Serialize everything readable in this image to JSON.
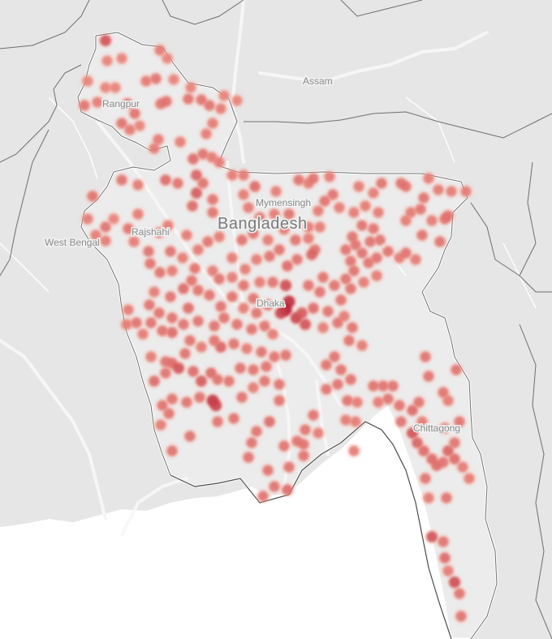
{
  "map": {
    "labels": {
      "assam": "Assam",
      "rangpur": "Rangpur",
      "mymensingh": "Mymensingh",
      "bangladesh": "Bangladesh",
      "rajshahi": "Rajshahi",
      "west_bengal": "West Bengal",
      "dhaka": "Dhaka",
      "chittagong": "Chittagong"
    },
    "colors": {
      "land": "#e8e8e8",
      "country": "#ededed",
      "sea": "#ffffff",
      "border": "#6e6e6e",
      "river": "#f6f6f6",
      "hotspot_low": "#f7a08e",
      "hotspot_high": "#a8001f"
    },
    "points": [
      [
        130,
        50,
        0.5
      ],
      [
        197,
        62,
        0.25
      ],
      [
        206,
        72,
        0.2
      ],
      [
        132,
        75,
        0.2
      ],
      [
        150,
        72,
        0.2
      ],
      [
        192,
        97,
        0.3
      ],
      [
        180,
        100,
        0.25
      ],
      [
        214,
        98,
        0.2
      ],
      [
        108,
        100,
        0.2
      ],
      [
        130,
        108,
        0.2
      ],
      [
        142,
        108,
        0.2
      ],
      [
        104,
        130,
        0.3
      ],
      [
        120,
        126,
        0.25
      ],
      [
        157,
        128,
        0.35
      ],
      [
        166,
        140,
        0.3
      ],
      [
        150,
        152,
        0.3
      ],
      [
        160,
        160,
        0.25
      ],
      [
        198,
        128,
        0.3
      ],
      [
        205,
        125,
        0.3
      ],
      [
        235,
        108,
        0.2
      ],
      [
        232,
        122,
        0.3
      ],
      [
        248,
        123,
        0.3
      ],
      [
        258,
        130,
        0.3
      ],
      [
        272,
        134,
        0.25
      ],
      [
        276,
        118,
        0.2
      ],
      [
        292,
        124,
        0.2
      ],
      [
        262,
        152,
        0.25
      ],
      [
        254,
        165,
        0.25
      ],
      [
        195,
        172,
        0.25
      ],
      [
        190,
        183,
        0.25
      ],
      [
        222,
        175,
        0.25
      ],
      [
        172,
        155,
        0.2
      ],
      [
        250,
        190,
        0.3
      ],
      [
        238,
        196,
        0.35
      ],
      [
        261,
        194,
        0.25
      ],
      [
        270,
        200,
        0.25
      ],
      [
        242,
        216,
        0.4
      ],
      [
        250,
        226,
        0.3
      ],
      [
        242,
        238,
        0.45
      ],
      [
        262,
        246,
        0.3
      ],
      [
        237,
        254,
        0.35
      ],
      [
        262,
        262,
        0.3
      ],
      [
        150,
        222,
        0.3
      ],
      [
        170,
        228,
        0.25
      ],
      [
        204,
        222,
        0.35
      ],
      [
        219,
        226,
        0.3
      ],
      [
        114,
        242,
        0.3
      ],
      [
        108,
        270,
        0.25
      ],
      [
        130,
        280,
        0.3
      ],
      [
        118,
        290,
        0.25
      ],
      [
        140,
        270,
        0.2
      ],
      [
        130,
        297,
        0.25
      ],
      [
        158,
        282,
        0.3
      ],
      [
        165,
        298,
        0.25
      ],
      [
        170,
        264,
        0.25
      ],
      [
        196,
        287,
        0.25
      ],
      [
        207,
        278,
        0.25
      ],
      [
        210,
        310,
        0.3
      ],
      [
        183,
        310,
        0.3
      ],
      [
        185,
        325,
        0.3
      ],
      [
        197,
        336,
        0.3
      ],
      [
        212,
        334,
        0.25
      ],
      [
        225,
        318,
        0.25
      ],
      [
        230,
        290,
        0.25
      ],
      [
        244,
        308,
        0.25
      ],
      [
        256,
        298,
        0.3
      ],
      [
        270,
        292,
        0.25
      ],
      [
        240,
        331,
        0.3
      ],
      [
        236,
        346,
        0.3
      ],
      [
        262,
        334,
        0.25
      ],
      [
        270,
        344,
        0.3
      ],
      [
        286,
        318,
        0.25
      ],
      [
        298,
        296,
        0.3
      ],
      [
        312,
        288,
        0.3
      ],
      [
        330,
        296,
        0.25
      ],
      [
        350,
        283,
        0.25
      ],
      [
        344,
        308,
        0.3
      ],
      [
        364,
        296,
        0.3
      ],
      [
        380,
        294,
        0.25
      ],
      [
        388,
        308,
        0.3
      ],
      [
        384,
        314,
        0.4
      ],
      [
        366,
        320,
        0.3
      ],
      [
        354,
        328,
        0.35
      ],
      [
        332,
        316,
        0.3
      ],
      [
        316,
        320,
        0.25
      ],
      [
        302,
        332,
        0.25
      ],
      [
        286,
        342,
        0.25
      ],
      [
        300,
        352,
        0.3
      ],
      [
        320,
        348,
        0.25
      ],
      [
        336,
        348,
        0.3
      ],
      [
        352,
        352,
        0.55
      ],
      [
        356,
        372,
        0.75
      ],
      [
        352,
        382,
        0.85
      ],
      [
        346,
        386,
        0.6
      ],
      [
        365,
        392,
        0.6
      ],
      [
        376,
        400,
        0.5
      ],
      [
        372,
        386,
        0.45
      ],
      [
        386,
        380,
        0.35
      ],
      [
        394,
        360,
        0.3
      ],
      [
        380,
        352,
        0.3
      ],
      [
        398,
        342,
        0.3
      ],
      [
        412,
        352,
        0.3
      ],
      [
        426,
        344,
        0.3
      ],
      [
        432,
        356,
        0.3
      ],
      [
        420,
        370,
        0.3
      ],
      [
        404,
        384,
        0.3
      ],
      [
        416,
        398,
        0.3
      ],
      [
        398,
        404,
        0.25
      ],
      [
        424,
        390,
        0.25
      ],
      [
        434,
        404,
        0.3
      ],
      [
        430,
        420,
        0.3
      ],
      [
        446,
        426,
        0.25
      ],
      [
        312,
        368,
        0.3
      ],
      [
        330,
        376,
        0.35
      ],
      [
        316,
        386,
        0.3
      ],
      [
        300,
        380,
        0.25
      ],
      [
        286,
        366,
        0.3
      ],
      [
        272,
        378,
        0.3
      ],
      [
        258,
        364,
        0.3
      ],
      [
        244,
        358,
        0.3
      ],
      [
        226,
        356,
        0.35
      ],
      [
        210,
        366,
        0.3
      ],
      [
        190,
        360,
        0.25
      ],
      [
        184,
        376,
        0.3
      ],
      [
        196,
        386,
        0.3
      ],
      [
        212,
        392,
        0.3
      ],
      [
        232,
        380,
        0.35
      ],
      [
        226,
        400,
        0.3
      ],
      [
        244,
        396,
        0.3
      ],
      [
        212,
        410,
        0.35
      ],
      [
        200,
        408,
        0.3
      ],
      [
        186,
        398,
        0.3
      ],
      [
        168,
        398,
        0.3
      ],
      [
        158,
        382,
        0.25
      ],
      [
        156,
        400,
        0.25
      ],
      [
        176,
        412,
        0.25
      ],
      [
        264,
        402,
        0.3
      ],
      [
        276,
        392,
        0.3
      ],
      [
        292,
        400,
        0.3
      ],
      [
        310,
        406,
        0.3
      ],
      [
        326,
        402,
        0.3
      ],
      [
        336,
        412,
        0.25
      ],
      [
        288,
        424,
        0.3
      ],
      [
        272,
        428,
        0.4
      ],
      [
        264,
        420,
        0.3
      ],
      [
        248,
        428,
        0.25
      ],
      [
        234,
        420,
        0.3
      ],
      [
        228,
        436,
        0.3
      ],
      [
        212,
        448,
        0.35
      ],
      [
        220,
        454,
        0.5
      ],
      [
        204,
        460,
        0.3
      ],
      [
        190,
        470,
        0.35
      ],
      [
        186,
        440,
        0.25
      ],
      [
        204,
        446,
        0.3
      ],
      [
        238,
        458,
        0.35
      ],
      [
        248,
        470,
        0.45
      ],
      [
        260,
        460,
        0.35
      ],
      [
        268,
        468,
        0.3
      ],
      [
        282,
        470,
        0.3
      ],
      [
        296,
        454,
        0.3
      ],
      [
        312,
        456,
        0.3
      ],
      [
        328,
        452,
        0.3
      ],
      [
        338,
        440,
        0.3
      ],
      [
        352,
        438,
        0.3
      ],
      [
        322,
        434,
        0.3
      ],
      [
        304,
        430,
        0.25
      ],
      [
        246,
        490,
        0.3
      ],
      [
        262,
        494,
        0.7
      ],
      [
        266,
        500,
        0.6
      ],
      [
        230,
        496,
        0.3
      ],
      [
        212,
        492,
        0.3
      ],
      [
        200,
        500,
        0.3
      ],
      [
        208,
        510,
        0.3
      ],
      [
        198,
        524,
        0.25
      ],
      [
        234,
        538,
        0.3
      ],
      [
        212,
        556,
        0.3
      ],
      [
        268,
        520,
        0.3
      ],
      [
        288,
        516,
        0.3
      ],
      [
        298,
        490,
        0.3
      ],
      [
        312,
        478,
        0.25
      ],
      [
        326,
        470,
        0.3
      ],
      [
        344,
        474,
        0.3
      ],
      [
        344,
        494,
        0.3
      ],
      [
        332,
        520,
        0.35
      ],
      [
        316,
        532,
        0.3
      ],
      [
        310,
        546,
        0.3
      ],
      [
        306,
        564,
        0.3
      ],
      [
        330,
        580,
        0.3
      ],
      [
        338,
        600,
        0.3
      ],
      [
        324,
        612,
        0.3
      ],
      [
        354,
        604,
        0.35
      ],
      [
        356,
        576,
        0.3
      ],
      [
        350,
        550,
        0.3
      ],
      [
        366,
        544,
        0.3
      ],
      [
        376,
        530,
        0.3
      ],
      [
        386,
        512,
        0.3
      ],
      [
        374,
        548,
        0.3
      ],
      [
        374,
        562,
        0.3
      ],
      [
        392,
        534,
        0.25
      ],
      [
        402,
        450,
        0.3
      ],
      [
        412,
        440,
        0.3
      ],
      [
        420,
        456,
        0.3
      ],
      [
        432,
        468,
        0.3
      ],
      [
        416,
        474,
        0.3
      ],
      [
        402,
        480,
        0.3
      ],
      [
        428,
        494,
        0.3
      ],
      [
        440,
        496,
        0.25
      ],
      [
        438,
        520,
        0.25
      ],
      [
        426,
        518,
        0.25
      ],
      [
        436,
        556,
        0.25
      ],
      [
        460,
        476,
        0.3
      ],
      [
        472,
        476,
        0.3
      ],
      [
        484,
        476,
        0.3
      ],
      [
        478,
        492,
        0.3
      ],
      [
        466,
        496,
        0.25
      ],
      [
        492,
        500,
        0.3
      ],
      [
        494,
        520,
        0.3
      ],
      [
        508,
        506,
        0.35
      ],
      [
        516,
        496,
        0.3
      ],
      [
        520,
        520,
        0.25
      ],
      [
        508,
        534,
        0.5
      ],
      [
        514,
        546,
        0.4
      ],
      [
        522,
        556,
        0.35
      ],
      [
        532,
        566,
        0.35
      ],
      [
        538,
        574,
        0.35
      ],
      [
        546,
        570,
        0.3
      ],
      [
        552,
        556,
        0.4
      ],
      [
        560,
        566,
        0.35
      ],
      [
        560,
        546,
        0.3
      ],
      [
        566,
        520,
        0.3
      ],
      [
        548,
        528,
        0.25
      ],
      [
        570,
        576,
        0.25
      ],
      [
        578,
        590,
        0.25
      ],
      [
        546,
        484,
        0.3
      ],
      [
        552,
        494,
        0.25
      ],
      [
        524,
        440,
        0.3
      ],
      [
        562,
        456,
        0.3
      ],
      [
        528,
        464,
        0.3
      ],
      [
        524,
        590,
        0.3
      ],
      [
        528,
        614,
        0.25
      ],
      [
        550,
        614,
        0.3
      ],
      [
        532,
        662,
        0.5
      ],
      [
        546,
        668,
        0.3
      ],
      [
        548,
        688,
        0.35
      ],
      [
        552,
        704,
        0.25
      ],
      [
        560,
        718,
        0.55
      ],
      [
        566,
        732,
        0.3
      ],
      [
        568,
        760,
        0.3
      ],
      [
        286,
        216,
        0.25
      ],
      [
        300,
        216,
        0.25
      ],
      [
        314,
        230,
        0.35
      ],
      [
        300,
        240,
        0.25
      ],
      [
        306,
        256,
        0.25
      ],
      [
        320,
        268,
        0.25
      ],
      [
        338,
        264,
        0.25
      ],
      [
        356,
        264,
        0.3
      ],
      [
        340,
        236,
        0.25
      ],
      [
        368,
        222,
        0.3
      ],
      [
        380,
        226,
        0.25
      ],
      [
        386,
        220,
        0.3
      ],
      [
        406,
        218,
        0.25
      ],
      [
        410,
        240,
        0.3
      ],
      [
        400,
        248,
        0.3
      ],
      [
        392,
        260,
        0.25
      ],
      [
        380,
        280,
        0.25
      ],
      [
        394,
        280,
        0.25
      ],
      [
        418,
        256,
        0.25
      ],
      [
        436,
        262,
        0.25
      ],
      [
        446,
        278,
        0.3
      ],
      [
        434,
        292,
        0.3
      ],
      [
        438,
        302,
        0.3
      ],
      [
        426,
        308,
        0.3
      ],
      [
        446,
        312,
        0.3
      ],
      [
        432,
        322,
        0.3
      ],
      [
        436,
        334,
        0.3
      ],
      [
        454,
        324,
        0.3
      ],
      [
        468,
        296,
        0.3
      ],
      [
        478,
        310,
        0.3
      ],
      [
        464,
        318,
        0.3
      ],
      [
        492,
        318,
        0.25
      ],
      [
        500,
        312,
        0.3
      ],
      [
        512,
        320,
        0.25
      ],
      [
        520,
        290,
        0.3
      ],
      [
        542,
        298,
        0.3
      ],
      [
        548,
        270,
        0.3
      ],
      [
        552,
        266,
        0.3
      ],
      [
        532,
        272,
        0.25
      ],
      [
        500,
        272,
        0.25
      ],
      [
        506,
        262,
        0.25
      ],
      [
        522,
        244,
        0.3
      ],
      [
        518,
        258,
        0.3
      ],
      [
        540,
        234,
        0.25
      ],
      [
        556,
        236,
        0.25
      ],
      [
        574,
        236,
        0.25
      ],
      [
        494,
        226,
        0.3
      ],
      [
        500,
        230,
        0.3
      ],
      [
        470,
        226,
        0.3
      ],
      [
        460,
        238,
        0.25
      ],
      [
        450,
        254,
        0.25
      ],
      [
        442,
        230,
        0.25
      ],
      [
        466,
        262,
        0.25
      ],
      [
        460,
        282,
        0.3
      ],
      [
        456,
        298,
        0.3
      ],
      [
        464,
        340,
        0.25
      ],
      [
        448,
        348,
        0.25
      ],
      [
        528,
        220,
        0.25
      ]
    ]
  }
}
